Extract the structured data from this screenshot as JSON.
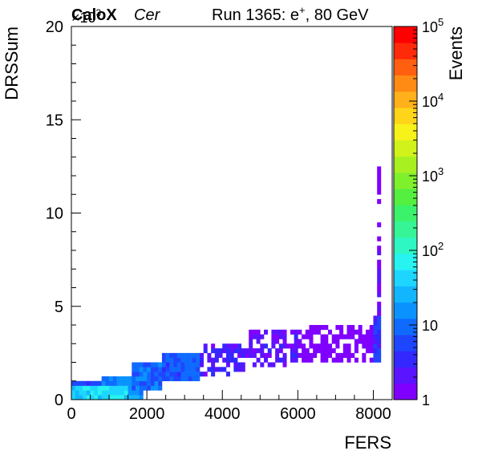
{
  "header": {
    "brand": "CaloX",
    "channel": "Cer",
    "run_label": "Run 1365: e",
    "run_sup": "+",
    "run_energy": ", 80 GeV"
  },
  "chart_data": {
    "type": "heatmap",
    "xlabel": "FERS",
    "ylabel": "DRSSum",
    "y_multiplier_base": "×10",
    "y_multiplier_exp": "3",
    "xlim": [
      0,
      8500
    ],
    "ylim": [
      0,
      20000
    ],
    "x_ticks": [
      0,
      2000,
      4000,
      6000,
      8000
    ],
    "x_tick_labels": [
      "0",
      "2000",
      "4000",
      "6000",
      "8000"
    ],
    "y_ticks": [
      0,
      5000,
      10000,
      15000,
      20000
    ],
    "y_tick_labels": [
      "0",
      "5",
      "10",
      "15",
      "20"
    ],
    "colorbar": {
      "label": "Events",
      "scale": "log",
      "range": [
        1,
        100000
      ],
      "tick_labels": [
        {
          "value": 1,
          "text": "1"
        },
        {
          "value": 10,
          "text": "10"
        },
        {
          "value": 100,
          "base": "10",
          "exp": "2"
        },
        {
          "value": 1000,
          "base": "10",
          "exp": "3"
        },
        {
          "value": 10000,
          "base": "10",
          "exp": "4"
        },
        {
          "value": 100000,
          "base": "10",
          "exp": "5"
        }
      ],
      "colors": [
        "#7f00ff",
        "#5a14ff",
        "#3328ff",
        "#1f46ff",
        "#0f6bff",
        "#0a93ff",
        "#12b6ff",
        "#1dd6ff",
        "#27f3f0",
        "#2ff7c4",
        "#36f596",
        "#3cf26a",
        "#55f03f",
        "#7ff02c",
        "#a8f020",
        "#d1f21a",
        "#f7f21a",
        "#ffd51a",
        "#ffb01a",
        "#ff8a14",
        "#ff5f0e",
        "#ff2a0a",
        "#ff0000"
      ]
    },
    "bins": {
      "x_width": 100,
      "y_width": 250,
      "regions": [
        {
          "x": [
            0,
            300
          ],
          "y": [
            0,
            750
          ],
          "count": 35
        },
        {
          "x": [
            300,
            1500
          ],
          "y": [
            0,
            750
          ],
          "count": 55
        },
        {
          "x": [
            1500,
            1900
          ],
          "y": [
            0,
            750
          ],
          "count": 20
        },
        {
          "x": [
            0,
            800
          ],
          "y": [
            750,
            1000
          ],
          "count": 5
        },
        {
          "x": [
            800,
            1600
          ],
          "y": [
            750,
            1250
          ],
          "count": 12
        },
        {
          "x": [
            1600,
            2400
          ],
          "y": [
            500,
            2000
          ],
          "count": 10
        },
        {
          "x": [
            2400,
            3400
          ],
          "y": [
            1000,
            2500
          ],
          "count": 8
        },
        {
          "x": [
            3400,
            4600
          ],
          "y": [
            1250,
            3000
          ],
          "count": 3
        },
        {
          "x": [
            4600,
            6000
          ],
          "y": [
            1750,
            3750
          ],
          "count": 2
        },
        {
          "x": [
            6000,
            8100
          ],
          "y": [
            2000,
            4000
          ],
          "count": 1
        },
        {
          "x": [
            8000,
            8200
          ],
          "y": [
            2000,
            4500
          ],
          "count": 4
        },
        {
          "x": [
            8100,
            8200
          ],
          "y": [
            4500,
            8000
          ],
          "count": 2
        },
        {
          "x": [
            8100,
            8200
          ],
          "y": [
            8000,
            12500
          ],
          "count": 1
        }
      ]
    }
  }
}
